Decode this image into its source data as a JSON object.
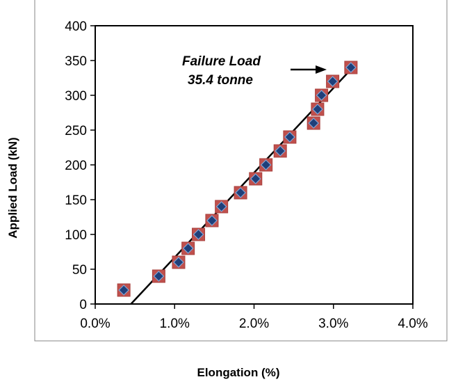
{
  "chart_data": {
    "type": "scatter",
    "title": "",
    "xlabel": "Elongation (%)",
    "ylabel": "Applied Load (kN)",
    "xlim": [
      0,
      0.04
    ],
    "ylim": [
      0,
      400
    ],
    "x_ticks": [
      0,
      0.01,
      0.02,
      0.03,
      0.04
    ],
    "x_tick_labels": [
      "0.0%",
      "1.0%",
      "2.0%",
      "3.0%",
      "4.0%"
    ],
    "y_ticks": [
      0,
      50,
      100,
      150,
      200,
      250,
      300,
      350,
      400
    ],
    "y_tick_labels": [
      "0",
      "50",
      "100",
      "150",
      "200",
      "250",
      "300",
      "350",
      "400"
    ],
    "grid": false,
    "series": [
      {
        "marker": "square",
        "color": "#c0504d",
        "x": [
          0.0036,
          0.008,
          0.0105,
          0.0117,
          0.013,
          0.0147,
          0.0159,
          0.0183,
          0.0202,
          0.0215,
          0.0233,
          0.0245,
          0.0275,
          0.028,
          0.0285,
          0.0299,
          0.0322
        ],
        "y": [
          20,
          40,
          60,
          80,
          100,
          120,
          140,
          160,
          180,
          200,
          220,
          240,
          260,
          280,
          300,
          320,
          340
        ]
      },
      {
        "marker": "diamond",
        "color": "#1f3f7a",
        "x": [
          0.0036,
          0.008,
          0.0105,
          0.0117,
          0.013,
          0.0147,
          0.0159,
          0.0183,
          0.0202,
          0.0215,
          0.0233,
          0.0245,
          0.0275,
          0.028,
          0.0285,
          0.0299,
          0.0322
        ],
        "y": [
          20,
          40,
          60,
          80,
          100,
          120,
          140,
          160,
          180,
          200,
          220,
          240,
          260,
          280,
          300,
          320,
          340
        ]
      }
    ],
    "trendline": {
      "x": [
        0.0045,
        0.0321
      ],
      "y": [
        0,
        336
      ],
      "color": "#000000"
    },
    "annotation": {
      "line1": "Failure Load",
      "line2": "35.4 tonne",
      "target": [
        0.0302,
        321
      ]
    }
  }
}
